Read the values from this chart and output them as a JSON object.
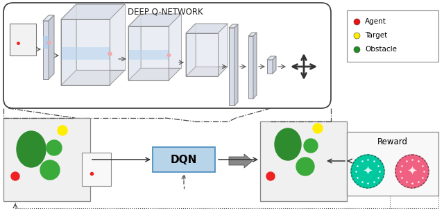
{
  "title": "DEEP Q-NETWORK",
  "legend_items": [
    {
      "label": "Agent",
      "color": "#ee1111"
    },
    {
      "label": "Target",
      "color": "#ffee00"
    },
    {
      "label": "Obstacle",
      "color": "#228B22"
    }
  ],
  "dqn_label": "DQN",
  "reward_label": "Reward",
  "bg_color": "#ffffff",
  "dqn_box_color": "#b8d4e8",
  "big_obstacle_color": "#2e8b2e",
  "small_obstacle_color": "#3aaa3a",
  "agent_color": "#ee2222",
  "target_color": "#ffee00",
  "reward_pos_color": "#00c9a0",
  "reward_neg_color": "#f06080"
}
